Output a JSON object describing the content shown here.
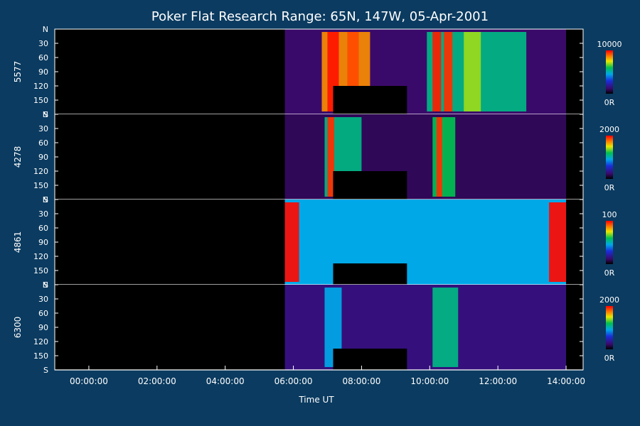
{
  "chart_data": {
    "type": "heatmap",
    "title": "Poker Flat Research Range: 65N, 147W, 05-Apr-2001",
    "xlabel": "Time UT",
    "xlim": [
      "23:00:00",
      "14:30:00"
    ],
    "x_ticks": [
      "00:00:00",
      "02:00:00",
      "04:00:00",
      "06:00:00",
      "08:00:00",
      "10:00:00",
      "12:00:00",
      "14:00:00"
    ],
    "y_ticks": [
      "N",
      "30",
      "60",
      "90",
      "120",
      "150",
      "S"
    ],
    "ylim": [
      0,
      180
    ],
    "panels": [
      {
        "ylabel": "5577",
        "colorbar": {
          "max": "10000",
          "min": "0R",
          "range": [
            0,
            10000
          ]
        },
        "data_start": "05:45:00",
        "data_end": "14:00:00",
        "background_level": 0.12,
        "features": [
          {
            "start": "06:50:00",
            "end": "08:15:00",
            "level": 0.85
          },
          {
            "start": "07:00:00",
            "end": "07:20:00",
            "level": 0.98
          },
          {
            "start": "07:35:00",
            "end": "07:55:00",
            "level": 0.92
          },
          {
            "start": "09:55:00",
            "end": "12:50:00",
            "level": 0.55
          },
          {
            "start": "10:05:00",
            "end": "10:20:00",
            "level": 0.97
          },
          {
            "start": "10:25:00",
            "end": "10:40:00",
            "level": 0.95
          },
          {
            "start": "11:00:00",
            "end": "11:30:00",
            "level": 0.7
          }
        ],
        "masked": {
          "start": "07:10:00",
          "end": "09:20:00",
          "from": 120,
          "to": 180
        }
      },
      {
        "ylabel": "4278",
        "colorbar": {
          "max": "2000",
          "min": "0R",
          "range": [
            0,
            2000
          ]
        },
        "data_start": "05:45:00",
        "data_end": "14:00:00",
        "background_level": 0.1,
        "features": [
          {
            "start": "06:55:00",
            "end": "08:00:00",
            "level": 0.55
          },
          {
            "start": "07:00:00",
            "end": "07:12:00",
            "level": 0.95
          },
          {
            "start": "10:05:00",
            "end": "10:45:00",
            "level": 0.6
          },
          {
            "start": "10:12:00",
            "end": "10:22:00",
            "level": 0.95
          }
        ],
        "masked": {
          "start": "07:10:00",
          "end": "09:20:00",
          "from": 120,
          "to": 180
        }
      },
      {
        "ylabel": "4861",
        "colorbar": {
          "max": "100",
          "min": "0R",
          "range": [
            0,
            100
          ]
        },
        "data_start": "05:45:00",
        "data_end": "14:00:00",
        "background_level": 0.45,
        "features": [
          {
            "start": "05:45:00",
            "end": "06:10:00",
            "level": 0.99
          },
          {
            "start": "13:30:00",
            "end": "14:00:00",
            "level": 0.99
          }
        ],
        "masked": {
          "start": "07:10:00",
          "end": "09:20:00",
          "from": 135,
          "to": 180
        }
      },
      {
        "ylabel": "6300",
        "colorbar": {
          "max": "2000",
          "min": "0R",
          "range": [
            0,
            2000
          ]
        },
        "data_start": "05:45:00",
        "data_end": "14:00:00",
        "background_level": 0.15,
        "features": [
          {
            "start": "06:55:00",
            "end": "07:25:00",
            "level": 0.45
          },
          {
            "start": "10:05:00",
            "end": "10:50:00",
            "level": 0.55
          }
        ],
        "masked": {
          "start": "07:10:00",
          "end": "09:20:00",
          "from": 135,
          "to": 180
        }
      }
    ]
  }
}
